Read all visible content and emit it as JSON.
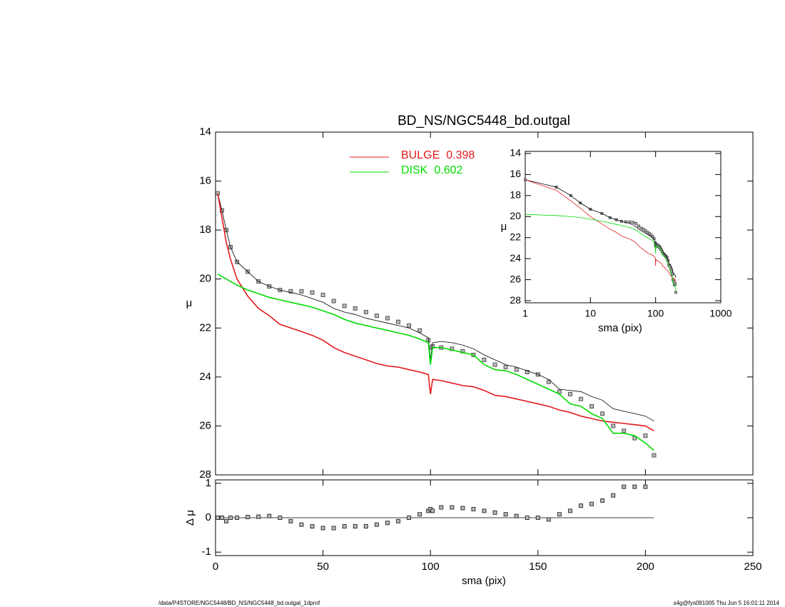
{
  "chart_data": [
    {
      "type": "line",
      "title": "BD_NS/NGC5448_bd.outgal",
      "ylabel": "μ",
      "x": [
        1,
        3,
        5,
        7,
        10,
        15,
        20,
        25,
        30,
        35,
        40,
        45,
        50,
        55,
        60,
        65,
        70,
        75,
        80,
        85,
        90,
        95,
        99,
        100,
        101,
        105,
        110,
        115,
        120,
        125,
        130,
        135,
        140,
        145,
        150,
        155,
        160,
        165,
        170,
        175,
        180,
        185,
        190,
        195,
        200,
        204
      ],
      "xlim": [
        0,
        250
      ],
      "xticks": [
        0,
        50,
        100,
        150,
        200,
        250
      ],
      "ylim": [
        14,
        28
      ],
      "yticks": [
        14,
        16,
        18,
        20,
        22,
        24,
        26,
        28
      ],
      "series": [
        {
          "color": "#555555",
          "marker": "square",
          "values": [
            16.5,
            17.2,
            18.0,
            18.7,
            19.3,
            19.7,
            20.1,
            20.3,
            20.45,
            20.5,
            20.5,
            20.55,
            20.65,
            20.9,
            21.1,
            21.2,
            21.35,
            21.5,
            21.6,
            21.75,
            21.9,
            22.1,
            22.5,
            22.8,
            22.75,
            22.8,
            22.85,
            22.95,
            23.1,
            23.3,
            23.5,
            23.6,
            23.7,
            23.8,
            23.9,
            24.2,
            24.6,
            24.7,
            24.9,
            25.2,
            25.5,
            26.0,
            26.2,
            26.5,
            26.4,
            27.2
          ]
        },
        {
          "color": "#000000",
          "values": [
            16.5,
            17.2,
            18.0,
            18.7,
            19.3,
            19.7,
            20.1,
            20.3,
            20.45,
            20.55,
            20.65,
            20.8,
            20.95,
            21.2,
            21.35,
            21.45,
            21.6,
            21.7,
            21.8,
            21.9,
            22.0,
            22.2,
            22.4,
            23.3,
            22.6,
            22.55,
            22.6,
            22.7,
            22.85,
            23.1,
            23.3,
            23.5,
            23.6,
            23.75,
            23.9,
            24.1,
            24.5,
            24.55,
            24.6,
            24.8,
            24.95,
            25.3,
            25.4,
            25.5,
            25.6,
            25.8
          ]
        },
        {
          "name": "BULGE",
          "fraction": 0.398,
          "color": "#e41a1c",
          "values": [
            16.5,
            17.5,
            18.5,
            19.2,
            20.0,
            20.7,
            21.2,
            21.5,
            21.85,
            22.0,
            22.15,
            22.3,
            22.5,
            22.8,
            23.0,
            23.15,
            23.3,
            23.45,
            23.55,
            23.6,
            23.7,
            23.8,
            23.9,
            24.7,
            24.1,
            24.15,
            24.25,
            24.35,
            24.4,
            24.55,
            24.75,
            24.8,
            24.9,
            25.0,
            25.1,
            25.2,
            25.35,
            25.45,
            25.6,
            25.7,
            25.8,
            25.85,
            25.9,
            25.95,
            26.0,
            26.2
          ]
        },
        {
          "name": "DISK",
          "fraction": 0.602,
          "color": "#00dd00",
          "values": [
            19.8,
            19.9,
            20.0,
            20.1,
            20.25,
            20.45,
            20.6,
            20.75,
            20.85,
            20.95,
            21.05,
            21.15,
            21.3,
            21.45,
            21.65,
            21.8,
            21.9,
            22.0,
            22.1,
            22.2,
            22.3,
            22.45,
            22.6,
            23.5,
            22.8,
            22.8,
            22.9,
            23.0,
            23.1,
            23.5,
            23.7,
            23.75,
            23.9,
            24.1,
            24.3,
            24.5,
            24.7,
            25.1,
            25.2,
            25.5,
            25.7,
            26.3,
            26.3,
            26.4,
            26.7,
            27.0
          ]
        }
      ]
    },
    {
      "type": "line",
      "log_x": true,
      "xlabel": "sma (pix)",
      "ylabel": "μ",
      "xlim": [
        1,
        1000
      ],
      "xticks": [
        1,
        10,
        100,
        1000
      ],
      "ylim": [
        13.8,
        28.2
      ],
      "yticks": [
        14,
        16,
        18,
        20,
        22,
        24,
        26,
        28
      ]
    },
    {
      "type": "scatter",
      "xlabel": "sma (pix)",
      "ylabel": "Δ μ",
      "ylim": [
        -1.1,
        1.1
      ],
      "yticks": [
        -1,
        0,
        1
      ],
      "values": [
        0,
        0,
        -0.1,
        0,
        0,
        0.02,
        0.03,
        0.05,
        0,
        -0.1,
        -0.2,
        -0.25,
        -0.3,
        -0.3,
        -0.25,
        -0.25,
        -0.25,
        -0.2,
        -0.15,
        -0.1,
        0,
        0.1,
        0.2,
        0.25,
        0.2,
        0.3,
        0.3,
        0.28,
        0.25,
        0.2,
        0.15,
        0.1,
        0.05,
        0,
        0,
        -0.05,
        0.1,
        0.2,
        0.35,
        0.4,
        0.5,
        0.65,
        0.9,
        0.9,
        0.9,
        null
      ]
    }
  ],
  "footer": {
    "left": "/data/P4STORE/NGC5448/BD_NS/NGC5448_bd.outgal_1dprof",
    "right": "s4g@fys091005  Thu Jun  5 16:01:11 2014"
  }
}
